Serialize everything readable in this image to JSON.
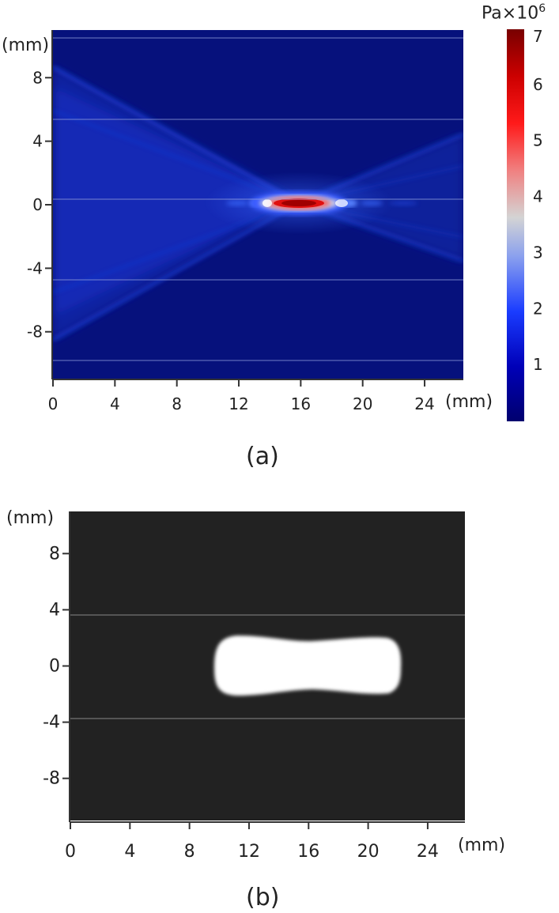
{
  "charts": [
    {
      "type": "heatmap",
      "panel_label": "(a)",
      "x_unit": "(mm)",
      "y_unit": "(mm)",
      "x_ticks": [
        "0",
        "4",
        "8",
        "12",
        "16",
        "20",
        "24"
      ],
      "y_ticks": [
        "8",
        "4",
        "0",
        "-4",
        "-8"
      ],
      "x_tick_values": [
        0,
        4,
        8,
        12,
        16,
        20,
        24
      ],
      "y_tick_values": [
        8,
        4,
        0,
        -4,
        -8
      ],
      "xlim": [
        0,
        26.5
      ],
      "ylim": [
        -11,
        11
      ],
      "colorbar": {
        "unit_base": "Pa",
        "unit_times": "×10",
        "unit_exp": "6",
        "ticks": [
          "7",
          "6",
          "5",
          "4",
          "3",
          "2",
          "1"
        ],
        "tick_values": [
          7,
          6,
          5,
          4,
          3,
          2,
          1
        ],
        "range": [
          0,
          7
        ],
        "colors": [
          "#00007a",
          "#0000c8",
          "#1a3cff",
          "#8fa6f0",
          "#d2d2d2",
          "#f07a7a",
          "#ff1a1a",
          "#c80000",
          "#780000"
        ]
      },
      "focal_point_mm": [
        15.5,
        0
      ],
      "peak_pressure_x1e6_pa": 7
    },
    {
      "type": "heatmap",
      "panel_label": "(b)",
      "x_unit": "(mm)",
      "y_unit": "(mm)",
      "x_ticks": [
        "0",
        "4",
        "8",
        "12",
        "16",
        "20",
        "24"
      ],
      "y_ticks": [
        "8",
        "4",
        "0",
        "-4",
        "-8"
      ],
      "x_tick_values": [
        0,
        4,
        8,
        12,
        16,
        20,
        24
      ],
      "y_tick_values": [
        8,
        4,
        0,
        -4,
        -8
      ],
      "xlim": [
        0,
        26.5
      ],
      "ylim": [
        -11,
        11
      ],
      "lesion_x_range_mm": [
        9.5,
        21.5
      ],
      "lesion_y_range_mm": [
        -2.2,
        2.2
      ],
      "lesion_waist_x_mm": 16
    }
  ]
}
